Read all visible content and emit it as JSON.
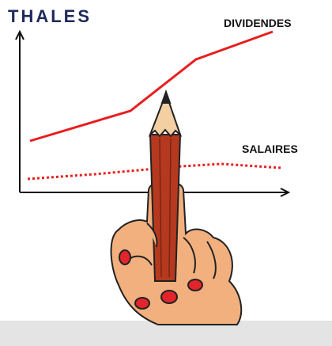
{
  "logo": "THALES",
  "labels": {
    "top": "DIVIDENDES",
    "bottom": "SALAIRES"
  }
}
